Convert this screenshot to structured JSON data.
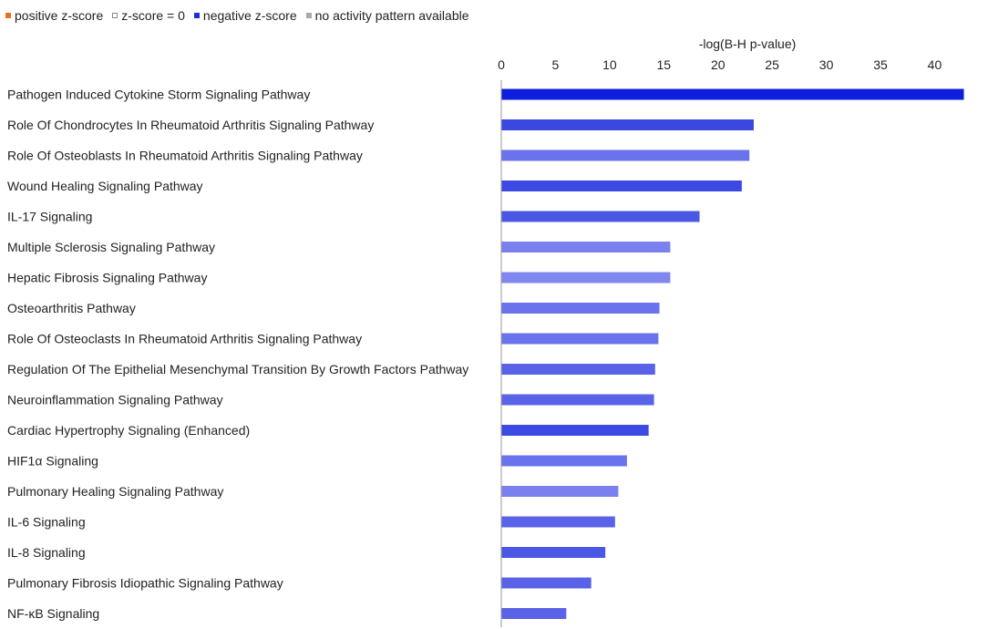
{
  "legend": [
    {
      "label": "positive z-score",
      "color": "#e8731c",
      "border": "#e8731c"
    },
    {
      "label": "z-score = 0",
      "color": "#ffffff",
      "border": "#888888"
    },
    {
      "label": "negative z-score",
      "color": "#1f2fd6",
      "border": "#1f2fd6"
    },
    {
      "label": "no activity pattern available",
      "color": "#a9a9a9",
      "border": "#a9a9a9"
    }
  ],
  "chart_data": {
    "type": "bar",
    "orientation": "horizontal",
    "title": "",
    "xlabel": "-log(B-H p-value)",
    "ylabel": "",
    "xlim": [
      0,
      44
    ],
    "xticks": [
      0,
      5,
      10,
      15,
      20,
      25,
      30,
      35,
      40
    ],
    "axis_position": "top",
    "grid": false,
    "legend_position": "top-left",
    "categories": [
      "Pathogen Induced Cytokine Storm Signaling Pathway",
      "Role Of Chondrocytes In Rheumatoid Arthritis Signaling Pathway",
      "Role Of Osteoblasts In Rheumatoid Arthritis Signaling Pathway",
      "Wound Healing Signaling Pathway",
      "IL-17 Signaling",
      "Multiple Sclerosis Signaling Pathway",
      "Hepatic Fibrosis Signaling Pathway",
      "Osteoarthritis Pathway",
      "Role Of Osteoclasts In Rheumatoid Arthritis Signaling Pathway",
      "Regulation Of The Epithelial Mesenchymal Transition By Growth Factors Pathway",
      "Neuroinflammation Signaling Pathway",
      "Cardiac Hypertrophy Signaling (Enhanced)",
      "HIF1α Signaling",
      "Pulmonary Healing Signaling Pathway",
      "IL-6 Signaling",
      "IL-8 Signaling",
      "Pulmonary Fibrosis Idiopathic Signaling Pathway",
      "NF-κB Signaling"
    ],
    "values": [
      42.7,
      23.3,
      22.9,
      22.2,
      18.3,
      15.6,
      15.6,
      14.6,
      14.5,
      14.2,
      14.1,
      13.6,
      11.6,
      10.8,
      10.5,
      9.6,
      8.3,
      6.0
    ],
    "colors": [
      "#0d1fdc",
      "#3a47e0",
      "#6a72ec",
      "#3c49e2",
      "#4b57e5",
      "#7a81ef",
      "#8088f0",
      "#6a72ec",
      "#6a72ec",
      "#5a63e8",
      "#5a63e8",
      "#3c49e2",
      "#6a72ec",
      "#7a81ef",
      "#5a63e8",
      "#4b57e5",
      "#5a63e8",
      "#5a63e8"
    ]
  }
}
